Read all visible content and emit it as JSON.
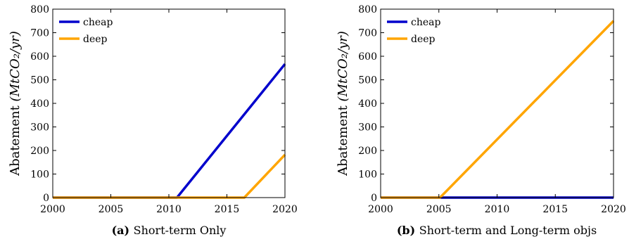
{
  "colors": {
    "cheap": "#0000cc",
    "deep": "#ffa500"
  },
  "chart_data": [
    {
      "type": "line",
      "panel_label": "(a)",
      "caption": "Short-term Only",
      "ylabel_main": "Abatement",
      "ylabel_unit": "(MtCO₂/yr)",
      "xlim": [
        2000,
        2020
      ],
      "ylim": [
        0,
        800
      ],
      "xticks": [
        2000,
        2005,
        2010,
        2015,
        2020
      ],
      "yticks": [
        0,
        100,
        200,
        300,
        400,
        500,
        600,
        700,
        800
      ],
      "legend_position": "top-left",
      "series": [
        {
          "name": "cheap",
          "color": "#0000cc",
          "x": [
            2000,
            2010.7,
            2020
          ],
          "y": [
            0,
            0,
            567
          ]
        },
        {
          "name": "deep",
          "color": "#ffa500",
          "x": [
            2000,
            2016.5,
            2020
          ],
          "y": [
            0,
            0,
            182
          ]
        }
      ]
    },
    {
      "type": "line",
      "panel_label": "(b)",
      "caption": "Short-term and Long-term objs",
      "ylabel_main": "Abatement",
      "ylabel_unit": "(MtCO₂/yr)",
      "xlim": [
        2000,
        2020
      ],
      "ylim": [
        0,
        800
      ],
      "xticks": [
        2000,
        2005,
        2010,
        2015,
        2020
      ],
      "yticks": [
        0,
        100,
        200,
        300,
        400,
        500,
        600,
        700,
        800
      ],
      "legend_position": "top-left",
      "series": [
        {
          "name": "cheap",
          "color": "#0000cc",
          "x": [
            2000,
            2020
          ],
          "y": [
            0,
            0
          ]
        },
        {
          "name": "deep",
          "color": "#ffa500",
          "x": [
            2000,
            2005.1,
            2020
          ],
          "y": [
            0,
            0,
            750
          ]
        }
      ]
    }
  ]
}
